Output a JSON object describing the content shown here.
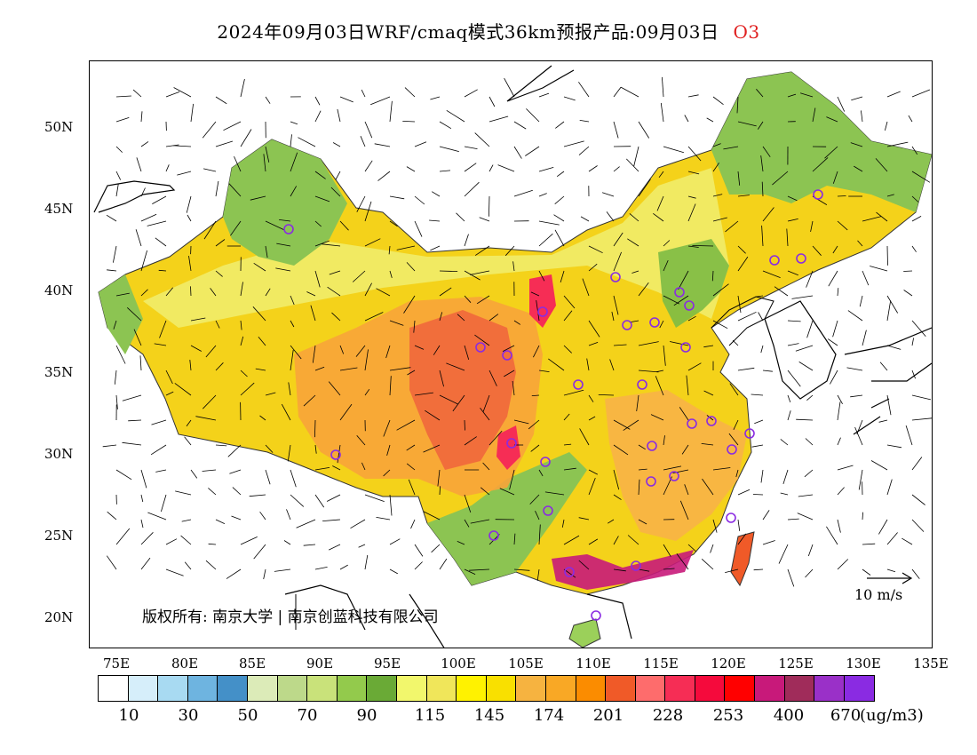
{
  "title": {
    "text": "2024年09月03日WRF/cmaq模式36km预报产品:09月03日",
    "species": "O3"
  },
  "map": {
    "lat_labels": [
      "50N",
      "45N",
      "40N",
      "35N",
      "30N",
      "25N",
      "20N"
    ],
    "lon_labels": [
      "75E",
      "80E",
      "85E",
      "90E",
      "95E",
      "100E",
      "105E",
      "110E",
      "115E",
      "120E",
      "125E",
      "130E",
      "135E"
    ],
    "copyright": "版权所有: 南京大学 | 南京创蓝科技有限公司",
    "wind_reference": "10 m/s",
    "station_marker_color": "#8a2be2"
  },
  "legend": {
    "colors": [
      "#ffffff",
      "#d6eefa",
      "#a8daf2",
      "#6eb4e0",
      "#4490c8",
      "#dcebb8",
      "#bdd98a",
      "#c9e27a",
      "#93ca4c",
      "#6aaa36",
      "#f2f76c",
      "#f0e65a",
      "#fff200",
      "#f9e000",
      "#f6b340",
      "#f9a825",
      "#fb8c00",
      "#f05a28",
      "#fe6c6c",
      "#f62d55",
      "#f50a3c",
      "#ff0000",
      "#c8197a",
      "#a02c5a",
      "#9a30c8",
      "#8a2be2"
    ],
    "labels": [
      "10",
      "30",
      "50",
      "70",
      "90",
      "115",
      "145",
      "174",
      "201",
      "228",
      "253",
      "400",
      "670"
    ],
    "unit": "(ug/m3)"
  }
}
